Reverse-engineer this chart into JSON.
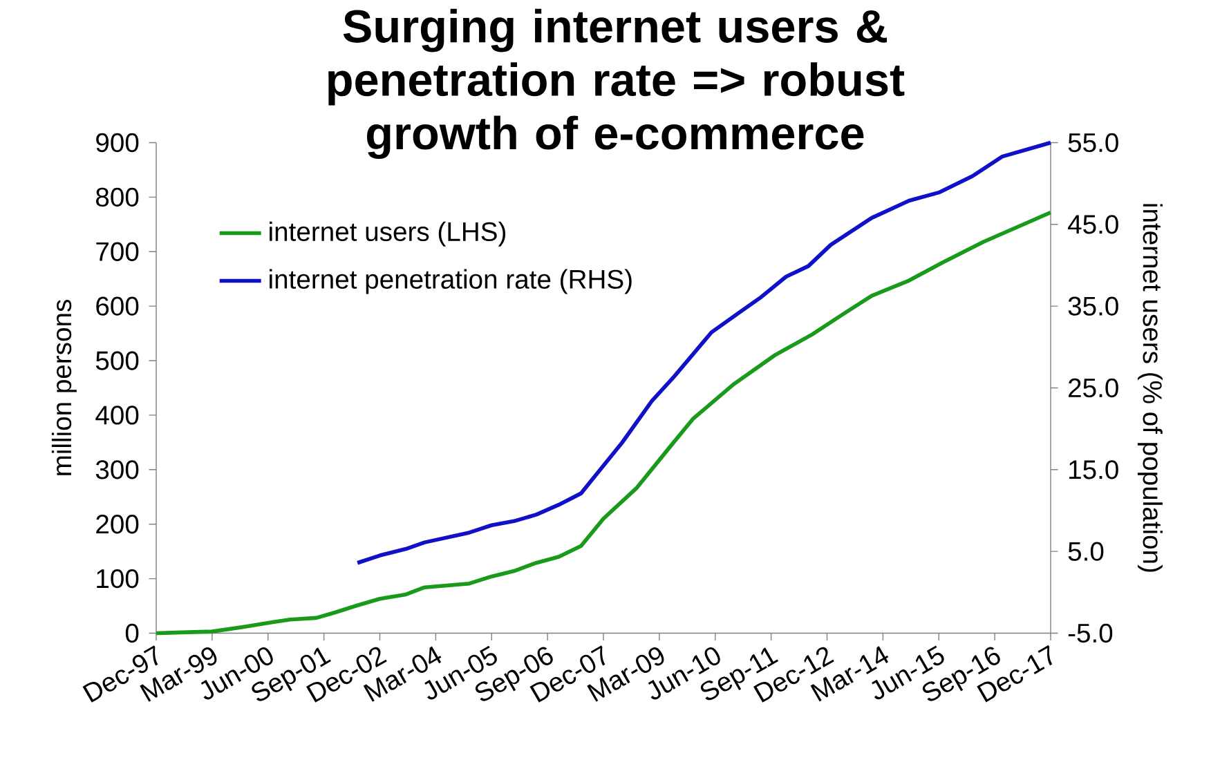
{
  "chart_data": {
    "type": "line",
    "title": "Surging internet users & penetration rate => robust growth of e-commerce",
    "ylabel": "million persons",
    "y2label": "internet users (% of population)",
    "xlim": [
      "1997-12",
      "2017-12"
    ],
    "xticks": [
      {
        "value": "1997-12",
        "label": "Dec-97"
      },
      {
        "value": "1999-03",
        "label": "Mar-99"
      },
      {
        "value": "2000-06",
        "label": "Jun-00"
      },
      {
        "value": "2001-09",
        "label": "Sep-01"
      },
      {
        "value": "2002-12",
        "label": "Dec-02"
      },
      {
        "value": "2004-03",
        "label": "Mar-04"
      },
      {
        "value": "2005-06",
        "label": "Jun-05"
      },
      {
        "value": "2006-09",
        "label": "Sep-06"
      },
      {
        "value": "2007-12",
        "label": "Dec-07"
      },
      {
        "value": "2009-03",
        "label": "Mar-09"
      },
      {
        "value": "2010-06",
        "label": "Jun-10"
      },
      {
        "value": "2011-09",
        "label": "Sep-11"
      },
      {
        "value": "2012-12",
        "label": "Dec-12"
      },
      {
        "value": "2014-03",
        "label": "Mar-14"
      },
      {
        "value": "2015-06",
        "label": "Jun-15"
      },
      {
        "value": "2016-09",
        "label": "Sep-16"
      },
      {
        "value": "2017-12",
        "label": "Dec-17"
      }
    ],
    "ylim": [
      0,
      900
    ],
    "yticks": [
      0,
      100,
      200,
      300,
      400,
      500,
      600,
      700,
      800,
      900
    ],
    "y2lim": [
      -5,
      55
    ],
    "y2ticks": [
      {
        "value": -5,
        "label": "-5.0"
      },
      {
        "value": 5,
        "label": "5.0"
      },
      {
        "value": 15,
        "label": "15.0"
      },
      {
        "value": 25,
        "label": "25.0"
      },
      {
        "value": 35,
        "label": "35.0"
      },
      {
        "value": 45,
        "label": "45.0"
      },
      {
        "value": 55,
        "label": "55.0"
      }
    ],
    "legend": "top left",
    "series": [
      {
        "name": "internet users (LHS)",
        "color": "#1a9a1a",
        "x": [
          "1997-12",
          "1999-03",
          "1999-12",
          "2000-07",
          "2000-12",
          "2001-07",
          "2001-12",
          "2002-06",
          "2002-12",
          "2003-07",
          "2003-12",
          "2004-12",
          "2005-06",
          "2005-12",
          "2006-06",
          "2006-12",
          "2007-06",
          "2007-09",
          "2007-12",
          "2008-09",
          "2009-06",
          "2009-12",
          "2010-11",
          "2011-10",
          "2012-08",
          "2013-04",
          "2013-12",
          "2014-10",
          "2015-07",
          "2016-06",
          "2017-12"
        ],
        "values": [
          0,
          3,
          12,
          20,
          25,
          28,
          38,
          51,
          63,
          71,
          84,
          91,
          104,
          114,
          129,
          140,
          160,
          185,
          210,
          267,
          343,
          393,
          457,
          510,
          548,
          584,
          619,
          647,
          680,
          718,
          772
        ]
      },
      {
        "name": "internet penetration rate (RHS)",
        "color": "#1010c8",
        "axis": "y2",
        "x": [
          "2002-06",
          "2002-12",
          "2003-07",
          "2003-12",
          "2004-12",
          "2005-06",
          "2005-12",
          "2006-06",
          "2006-12",
          "2007-06",
          "2007-09",
          "2008-05",
          "2009-01",
          "2009-07",
          "2010-05",
          "2011-01",
          "2011-06",
          "2012-01",
          "2012-07",
          "2013-01",
          "2013-12",
          "2014-10",
          "2015-06",
          "2016-03",
          "2016-11",
          "2017-12"
        ],
        "values": [
          3.6,
          4.5,
          5.3,
          6.1,
          7.3,
          8.2,
          8.7,
          9.5,
          10.7,
          12.1,
          13.8,
          18.3,
          23.4,
          26.4,
          31.8,
          34.4,
          36.0,
          38.6,
          39.9,
          42.5,
          45.8,
          47.9,
          48.9,
          50.9,
          53.3,
          55.0
        ]
      }
    ]
  }
}
